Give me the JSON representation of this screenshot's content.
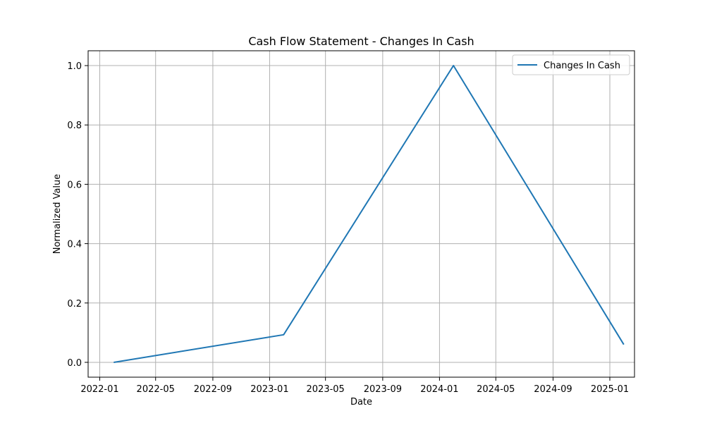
{
  "chart_data": {
    "type": "line",
    "title": "Cash Flow Statement - Changes In Cash",
    "xlabel": "Date",
    "ylabel": "Normalized Value",
    "x_ticks": [
      "2022-01",
      "2022-05",
      "2022-09",
      "2023-01",
      "2023-05",
      "2023-09",
      "2024-01",
      "2024-05",
      "2024-09",
      "2025-01"
    ],
    "y_ticks": [
      "0.0",
      "0.2",
      "0.4",
      "0.6",
      "0.8",
      "1.0"
    ],
    "xlim": [
      "2021-12-07",
      "2025-02-23"
    ],
    "ylim": [
      -0.05,
      1.05
    ],
    "grid": true,
    "legend_position": "upper-right",
    "series": [
      {
        "name": "Changes In Cash",
        "color": "#1f77b4",
        "x": [
          "2022-01-31",
          "2023-01-31",
          "2024-01-31",
          "2025-01-31"
        ],
        "y": [
          0.0,
          0.093,
          1.0,
          0.06
        ]
      }
    ]
  }
}
